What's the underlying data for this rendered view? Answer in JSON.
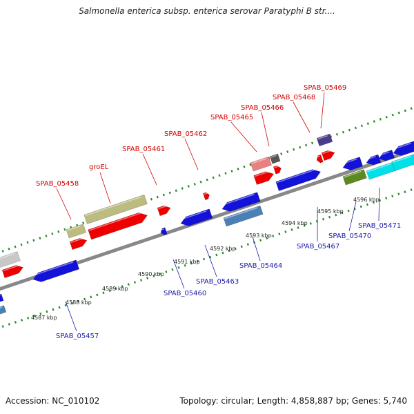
{
  "title": "Salmonella enterica subsp. enterica serovar Paratyphi B str....",
  "footer": {
    "accession": "Accession: NC_010102",
    "summary": "Topology: circular; Length: 4,858,887 bp; Genes: 5,740"
  },
  "colors": {
    "red": "#ee0000",
    "blue": "#1212d8",
    "olive": "#bcbc80",
    "steel": "#4a80b4",
    "cyan": "#00e0e8",
    "pink": "#ea8080",
    "gray": "#c8c8c8",
    "purple": "#4a3c8c",
    "darkgreen": "#5a8a20",
    "dark": "#555555",
    "tick": "#2a8a2a",
    "top_label": "#d40000",
    "bottom_label": "#1a1aa8"
  },
  "kbp_ticks": [
    "4587 kbp",
    "4588 kbp",
    "4589 kbp",
    "4590 kbp",
    "4591 kbp",
    "4592 kbp",
    "4593 kbp",
    "4594 kbp",
    "4595 kbp",
    "4596 kbp"
  ],
  "top_labels": [
    "SPAB_05458",
    "groEL",
    "SPAB_05461",
    "SPAB_05462",
    "SPAB_05465",
    "SPAB_05466",
    "SPAB_05468",
    "SPAB_05469"
  ],
  "bottom_labels": [
    "SPAB_05457",
    "SPAB_05460",
    "SPAB_05463",
    "SPAB_05464",
    "SPAB_05467",
    "SPAB_05470",
    "SPAB_05471"
  ]
}
